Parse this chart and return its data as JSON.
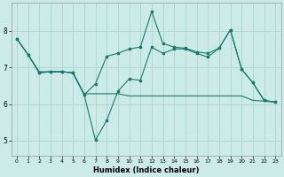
{
  "xlabel": "Humidex (Indice chaleur)",
  "background_color": "#cceae8",
  "line_color": "#1a7a6e",
  "grid_color": "#aad4d0",
  "ylim": [
    4.6,
    8.75
  ],
  "xlim": [
    -0.5,
    23.5
  ],
  "x_ticks": [
    0,
    1,
    2,
    3,
    4,
    5,
    6,
    7,
    8,
    9,
    10,
    11,
    12,
    13,
    14,
    15,
    16,
    17,
    18,
    19,
    20,
    21,
    22,
    23
  ],
  "y_ticks": [
    5,
    6,
    7,
    8
  ],
  "series1_x": [
    0,
    1,
    2,
    3,
    4,
    5,
    6,
    7,
    8,
    9,
    10,
    11,
    12,
    13,
    14,
    15,
    16,
    17,
    18,
    19,
    20,
    21,
    22,
    23
  ],
  "series1_y": [
    7.78,
    7.35,
    6.85,
    6.88,
    6.88,
    6.85,
    6.25,
    6.55,
    7.3,
    7.38,
    7.5,
    7.55,
    8.52,
    7.65,
    7.55,
    7.52,
    7.42,
    7.38,
    7.52,
    8.02,
    6.95,
    6.58,
    6.1,
    6.05
  ],
  "series2_x": [
    0,
    1,
    2,
    3,
    4,
    5,
    6,
    7,
    8,
    9,
    10,
    11,
    12,
    13,
    14,
    15,
    16,
    17,
    18,
    19,
    20,
    21,
    22,
    23
  ],
  "series2_y": [
    7.78,
    7.35,
    6.85,
    6.88,
    6.88,
    6.85,
    6.25,
    5.02,
    5.55,
    6.35,
    6.68,
    6.65,
    7.55,
    7.38,
    7.5,
    7.5,
    7.38,
    7.28,
    7.52,
    8.02,
    6.95,
    6.58,
    6.1,
    6.05
  ],
  "series3_x": [
    0,
    1,
    2,
    3,
    4,
    5,
    6,
    7,
    8,
    9,
    10,
    11,
    12,
    13,
    14,
    15,
    16,
    17,
    18,
    19,
    20,
    21,
    22,
    23
  ],
  "series3_y": [
    7.78,
    7.35,
    6.88,
    6.88,
    6.88,
    6.85,
    6.28,
    6.28,
    6.28,
    6.28,
    6.22,
    6.22,
    6.22,
    6.22,
    6.22,
    6.22,
    6.22,
    6.22,
    6.22,
    6.22,
    6.22,
    6.1,
    6.08,
    6.05
  ]
}
